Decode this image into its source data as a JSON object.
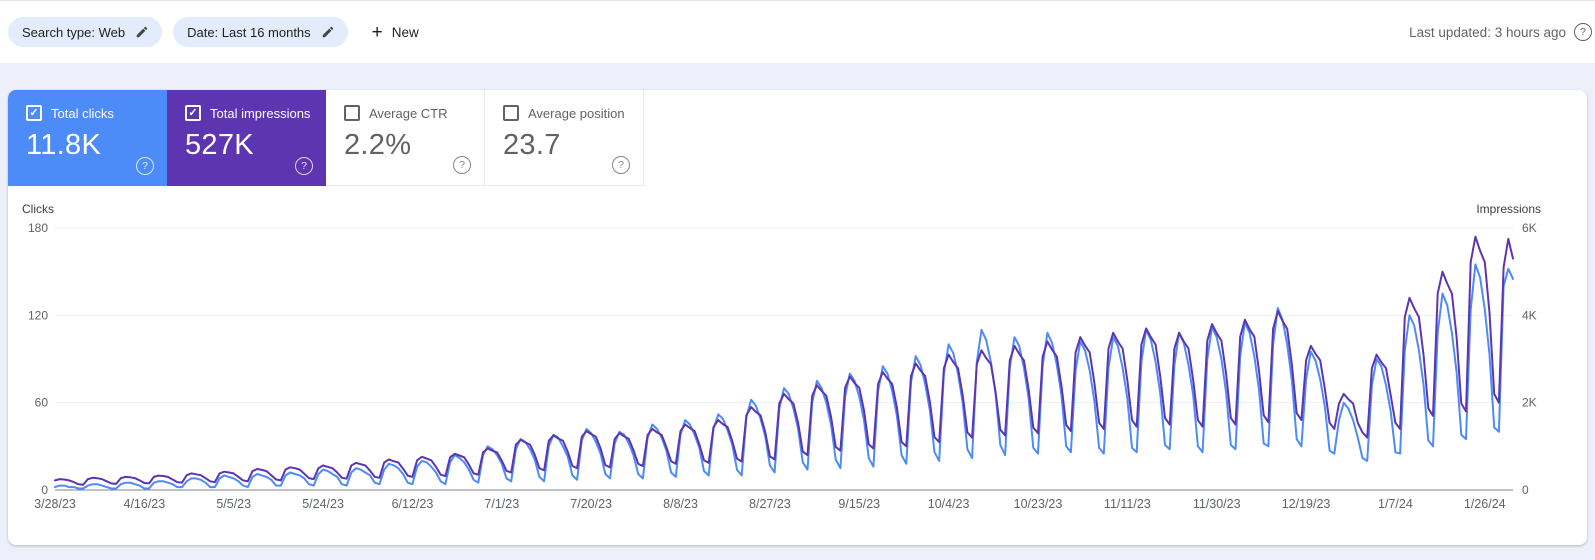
{
  "header": {
    "chips": [
      {
        "label": "Search type: Web"
      },
      {
        "label": "Date: Last 16 months"
      }
    ],
    "new_button_label": "New",
    "last_updated": "Last updated: 3 hours ago",
    "help_symbol": "?"
  },
  "metrics": [
    {
      "label": "Total clicks",
      "value": "11.8K",
      "checked": true,
      "color": "#4d8bf8"
    },
    {
      "label": "Total impressions",
      "value": "527K",
      "checked": true,
      "color": "#5e35b1"
    },
    {
      "label": "Average CTR",
      "value": "2.2%",
      "checked": false,
      "color": "#ffffff"
    },
    {
      "label": "Average position",
      "value": "23.7",
      "checked": false,
      "color": "#ffffff"
    }
  ],
  "chart_data": {
    "type": "line",
    "x_unit": "day",
    "start_date": "3/28/23",
    "end_date": "1/31/24",
    "grid": "horizontal",
    "legend_position": "none",
    "left_axis": {
      "title": "Clicks",
      "max": 180,
      "ticks": [
        {
          "v": 0,
          "label": "0"
        },
        {
          "v": 60,
          "label": "60"
        },
        {
          "v": 120,
          "label": "120"
        },
        {
          "v": 180,
          "label": "180"
        }
      ]
    },
    "right_axis": {
      "title": "Impressions",
      "max": 6000,
      "ticks": [
        {
          "v": 0,
          "label": "0"
        },
        {
          "v": 2000,
          "label": "2K"
        },
        {
          "v": 4000,
          "label": "4K"
        },
        {
          "v": 6000,
          "label": "6K"
        }
      ]
    },
    "x_tick_days": [
      0,
      19,
      38,
      57,
      76,
      95,
      114,
      133,
      152,
      171,
      190,
      209,
      228,
      247,
      266,
      285,
      304
    ],
    "x_tick_labels": [
      "3/28/23",
      "4/16/23",
      "5/5/23",
      "5/24/23",
      "6/12/23",
      "7/1/23",
      "7/20/23",
      "8/8/23",
      "8/27/23",
      "9/15/23",
      "10/4/23",
      "10/23/23",
      "11/11/23",
      "11/30/23",
      "12/19/23",
      "1/7/24",
      "1/26/24"
    ],
    "series": [
      {
        "name": "Clicks",
        "axis": "left",
        "color": "#4d8bf8",
        "values": [
          2,
          3,
          3,
          2,
          2,
          1,
          1,
          3,
          4,
          4,
          3,
          2,
          1,
          1,
          4,
          5,
          5,
          4,
          3,
          1,
          1,
          5,
          6,
          6,
          5,
          4,
          2,
          2,
          6,
          8,
          8,
          7,
          5,
          2,
          2,
          8,
          10,
          9,
          8,
          6,
          3,
          2,
          9,
          11,
          10,
          9,
          7,
          3,
          3,
          10,
          12,
          11,
          10,
          8,
          4,
          3,
          11,
          14,
          13,
          11,
          9,
          4,
          3,
          12,
          15,
          14,
          12,
          10,
          5,
          4,
          14,
          18,
          17,
          15,
          11,
          5,
          4,
          16,
          20,
          19,
          16,
          12,
          6,
          4,
          19,
          24,
          22,
          19,
          14,
          7,
          5,
          24,
          30,
          28,
          24,
          18,
          8,
          6,
          28,
          35,
          33,
          28,
          21,
          9,
          6,
          30,
          38,
          36,
          30,
          23,
          10,
          7,
          34,
          42,
          39,
          33,
          25,
          11,
          8,
          32,
          40,
          38,
          32,
          24,
          11,
          8,
          36,
          45,
          42,
          36,
          27,
          12,
          9,
          38,
          48,
          45,
          38,
          29,
          13,
          10,
          42,
          52,
          49,
          41,
          31,
          14,
          10,
          50,
          62,
          58,
          49,
          37,
          17,
          12,
          56,
          70,
          66,
          56,
          42,
          19,
          14,
          60,
          75,
          70,
          60,
          45,
          21,
          15,
          64,
          80,
          75,
          64,
          48,
          22,
          16,
          68,
          85,
          80,
          68,
          51,
          24,
          18,
          74,
          92,
          86,
          73,
          55,
          26,
          20,
          80,
          100,
          94,
          80,
          60,
          28,
          22,
          88,
          110,
          103,
          88,
          66,
          31,
          24,
          84,
          105,
          99,
          84,
          63,
          29,
          25,
          86,
          108,
          101,
          86,
          65,
          30,
          26,
          82,
          102,
          96,
          82,
          61,
          29,
          25,
          84,
          105,
          99,
          84,
          63,
          29,
          26,
          88,
          110,
          103,
          88,
          66,
          31,
          28,
          86,
          108,
          101,
          86,
          65,
          30,
          26,
          90,
          112,
          105,
          90,
          67,
          31,
          28,
          92,
          115,
          108,
          92,
          69,
          32,
          30,
          100,
          125,
          117,
          100,
          75,
          35,
          30,
          76,
          95,
          89,
          76,
          57,
          27,
          25,
          48,
          60,
          56,
          48,
          36,
          22,
          20,
          72,
          90,
          85,
          72,
          54,
          26,
          25,
          96,
          120,
          113,
          96,
          72,
          34,
          30,
          108,
          135,
          127,
          108,
          81,
          38,
          35,
          124,
          155,
          146,
          124,
          93,
          43,
          40,
          140,
          152,
          145
        ]
      },
      {
        "name": "Impressions",
        "axis": "right",
        "color": "#5e35b1",
        "values": [
          220,
          250,
          240,
          220,
          180,
          130,
          120,
          250,
          280,
          270,
          250,
          200,
          150,
          140,
          270,
          300,
          290,
          270,
          220,
          160,
          150,
          300,
          330,
          320,
          300,
          240,
          180,
          170,
          340,
          380,
          360,
          340,
          270,
          200,
          180,
          380,
          420,
          400,
          380,
          300,
          220,
          200,
          430,
          480,
          460,
          430,
          340,
          240,
          220,
          470,
          520,
          500,
          470,
          370,
          270,
          250,
          500,
          560,
          530,
          500,
          400,
          280,
          260,
          560,
          620,
          590,
          560,
          440,
          300,
          280,
          630,
          700,
          660,
          630,
          490,
          330,
          300,
          680,
          760,
          720,
          680,
          530,
          350,
          320,
          750,
          830,
          790,
          750,
          580,
          380,
          350,
          860,
          950,
          900,
          860,
          670,
          440,
          400,
          1040,
          1150,
          1090,
          1040,
          810,
          500,
          450,
          1130,
          1250,
          1180,
          1130,
          880,
          550,
          500,
          1220,
          1350,
          1280,
          1220,
          950,
          570,
          520,
          1170,
          1300,
          1230,
          1170,
          910,
          600,
          550,
          1260,
          1400,
          1320,
          1260,
          980,
          660,
          600,
          1350,
          1500,
          1420,
          1350,
          1050,
          680,
          620,
          1440,
          1600,
          1510,
          1440,
          1120,
          720,
          650,
          1710,
          1900,
          1790,
          1710,
          1330,
          770,
          700,
          1980,
          2200,
          2080,
          1980,
          1540,
          880,
          800,
          2160,
          2400,
          2270,
          2160,
          1680,
          990,
          900,
          2340,
          2600,
          2450,
          2340,
          1820,
          1050,
          950,
          2430,
          2700,
          2550,
          2430,
          1890,
          1100,
          1000,
          2610,
          2900,
          2740,
          2610,
          2030,
          1210,
          1100,
          2790,
          3100,
          2930,
          2790,
          2170,
          1320,
          1200,
          2880,
          3200,
          3020,
          2880,
          2240,
          1380,
          1250,
          2970,
          3300,
          3120,
          2970,
          2310,
          1430,
          1300,
          3060,
          3400,
          3210,
          3060,
          2380,
          1490,
          1350,
          3150,
          3500,
          3310,
          3150,
          2450,
          1540,
          1400,
          3240,
          3600,
          3400,
          3240,
          2520,
          1600,
          1450,
          3330,
          3700,
          3500,
          3330,
          2590,
          1650,
          1500,
          3240,
          3600,
          3400,
          3240,
          2520,
          1600,
          1450,
          3420,
          3800,
          3590,
          3420,
          2660,
          1650,
          1500,
          3510,
          3900,
          3680,
          3510,
          2730,
          1710,
          1550,
          3690,
          4100,
          3870,
          3690,
          2870,
          1760,
          1600,
          2970,
          3300,
          3120,
          2970,
          2310,
          1540,
          1400,
          1980,
          2200,
          2080,
          1980,
          1540,
          1320,
          1200,
          2790,
          3100,
          2930,
          2790,
          2170,
          1540,
          1400,
          3960,
          4400,
          4160,
          3960,
          3080,
          1870,
          1700,
          4500,
          5000,
          4730,
          4500,
          3500,
          1980,
          1800,
          5220,
          5800,
          5480,
          5220,
          4060,
          2200,
          2000,
          5100,
          5750,
          5300
        ]
      }
    ]
  }
}
